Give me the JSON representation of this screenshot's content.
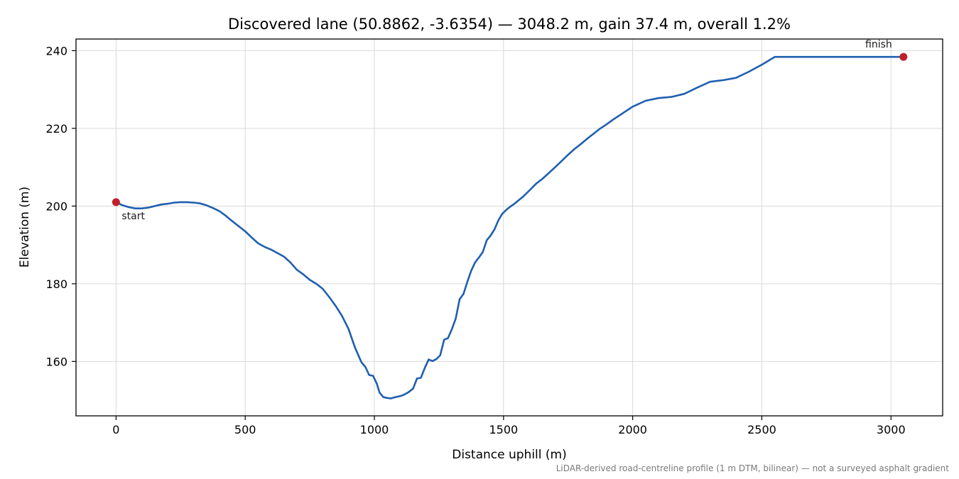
{
  "chart_data": {
    "type": "line",
    "title": "Discovered lane (50.8862, -3.6354) — 3048.2 m, gain 37.4 m, overall 1.2%",
    "xlabel": "Distance uphill (m)",
    "ylabel": "Elevation (m)",
    "footnote": "LiDAR-derived road-centreline profile (1 m DTM, bilinear) — not a surveyed asphalt gradient",
    "xlim": [
      -155,
      3200
    ],
    "ylim": [
      146,
      243
    ],
    "xticks": [
      0,
      500,
      1000,
      1500,
      2000,
      2500,
      3000
    ],
    "yticks": [
      160,
      180,
      200,
      220,
      240
    ],
    "grid": true,
    "colors": {
      "line": "#1f5fb0",
      "marker": "#c0202a"
    },
    "series": [
      {
        "x": [
          0,
          25,
          50,
          75,
          100,
          125,
          150,
          175,
          200,
          225,
          250,
          275,
          300,
          325,
          350,
          375,
          400,
          425,
          450,
          475,
          500,
          525,
          550,
          575,
          600,
          625,
          650,
          675,
          700,
          725,
          750,
          775,
          800,
          825,
          850,
          875,
          900,
          925,
          950,
          965,
          980,
          995,
          1010,
          1020,
          1035,
          1050,
          1065,
          1080,
          1095,
          1110,
          1130,
          1150,
          1165,
          1180,
          1195,
          1210,
          1225,
          1240,
          1255,
          1270,
          1285,
          1300,
          1315,
          1330,
          1345,
          1360,
          1375,
          1390,
          1405,
          1420,
          1435,
          1450,
          1465,
          1480,
          1495,
          1510,
          1525,
          1540,
          1555,
          1575,
          1600,
          1625,
          1650,
          1675,
          1700,
          1725,
          1750,
          1775,
          1800,
          1825,
          1850,
          1875,
          1900,
          1925,
          1950,
          1975,
          2000,
          2050,
          2100,
          2150,
          2200,
          2250,
          2300,
          2350,
          2400,
          2450,
          2500,
          2550,
          2600,
          2650,
          2700,
          2750,
          2800,
          2850,
          2900,
          2950,
          3000,
          3025,
          3048.2
        ],
        "y": [
          201.0,
          200.2,
          199.7,
          199.4,
          199.4,
          199.6,
          200.0,
          200.4,
          200.6,
          200.9,
          201.0,
          201.0,
          200.9,
          200.7,
          200.2,
          199.5,
          198.7,
          197.5,
          196.1,
          194.8,
          193.5,
          191.9,
          190.4,
          189.5,
          188.8,
          187.9,
          187.0,
          185.5,
          183.6,
          182.4,
          181.0,
          180.0,
          178.7,
          176.6,
          174.3,
          171.7,
          168.4,
          163.6,
          159.8,
          158.6,
          156.5,
          156.3,
          154.2,
          152.0,
          150.8,
          150.6,
          150.5,
          150.8,
          151.0,
          151.3,
          152.0,
          153.0,
          155.6,
          155.8,
          158.3,
          160.5,
          160.1,
          160.6,
          161.6,
          165.6,
          166.0,
          168.3,
          171.0,
          176.0,
          177.4,
          180.5,
          183.4,
          185.5,
          186.8,
          188.2,
          191.2,
          192.4,
          194.0,
          196.3,
          198.0,
          199.0,
          199.8,
          200.5,
          201.3,
          202.4,
          204.0,
          205.7,
          207.0,
          208.5,
          210.0,
          211.6,
          213.2,
          214.7,
          216.0,
          217.4,
          218.7,
          220.0,
          221.1,
          222.3,
          223.4,
          224.5,
          225.6,
          227.1,
          227.8,
          228.1,
          228.9,
          230.5,
          232.0,
          232.4,
          233.0,
          234.6,
          236.4,
          238.4,
          238.4,
          238.4,
          238.4,
          238.4,
          238.4,
          238.4,
          238.4,
          238.4,
          238.4,
          238.4,
          238.4
        ]
      }
    ],
    "annotations": [
      {
        "text": "start",
        "x": 0,
        "y": 201.0
      },
      {
        "text": "finish",
        "x": 3048.2,
        "y": 238.4
      }
    ]
  }
}
